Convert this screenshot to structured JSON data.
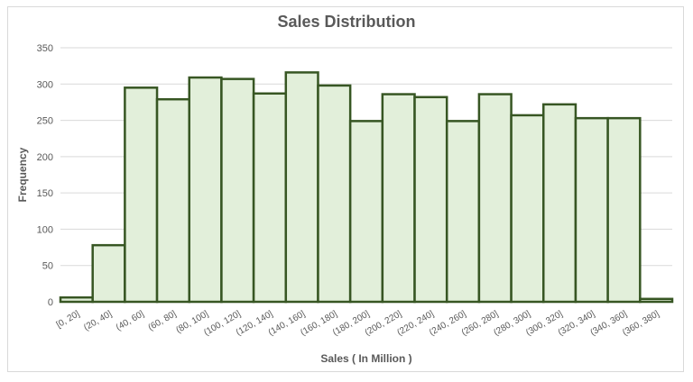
{
  "chart_data": {
    "type": "bar",
    "title": "Sales Distribution",
    "xlabel": "Sales ( In Million )",
    "ylabel": "Frequency",
    "ylim": [
      0,
      350
    ],
    "yticks": [
      0,
      50,
      100,
      150,
      200,
      250,
      300,
      350
    ],
    "grid": true,
    "legend": "none",
    "categories": [
      "[0, 20]",
      "(20, 40]",
      "(40, 60]",
      "(60, 80]",
      "(80, 100]",
      "(100, 120]",
      "(120, 140]",
      "(140, 160]",
      "(160, 180]",
      "(180, 200]",
      "(200, 220]",
      "(220, 240]",
      "(240, 260]",
      "(260, 280]",
      "(280, 300]",
      "(300, 320]",
      "(320, 340]",
      "(340, 360]",
      "(360, 380]"
    ],
    "values": [
      6,
      78,
      295,
      279,
      309,
      307,
      287,
      316,
      298,
      249,
      286,
      282,
      249,
      286,
      257,
      272,
      253,
      253,
      4
    ],
    "colors": {
      "bar_fill": "#e2efda",
      "bar_stroke": "#375623",
      "grid": "#d9d9d9",
      "text": "#595959"
    }
  }
}
